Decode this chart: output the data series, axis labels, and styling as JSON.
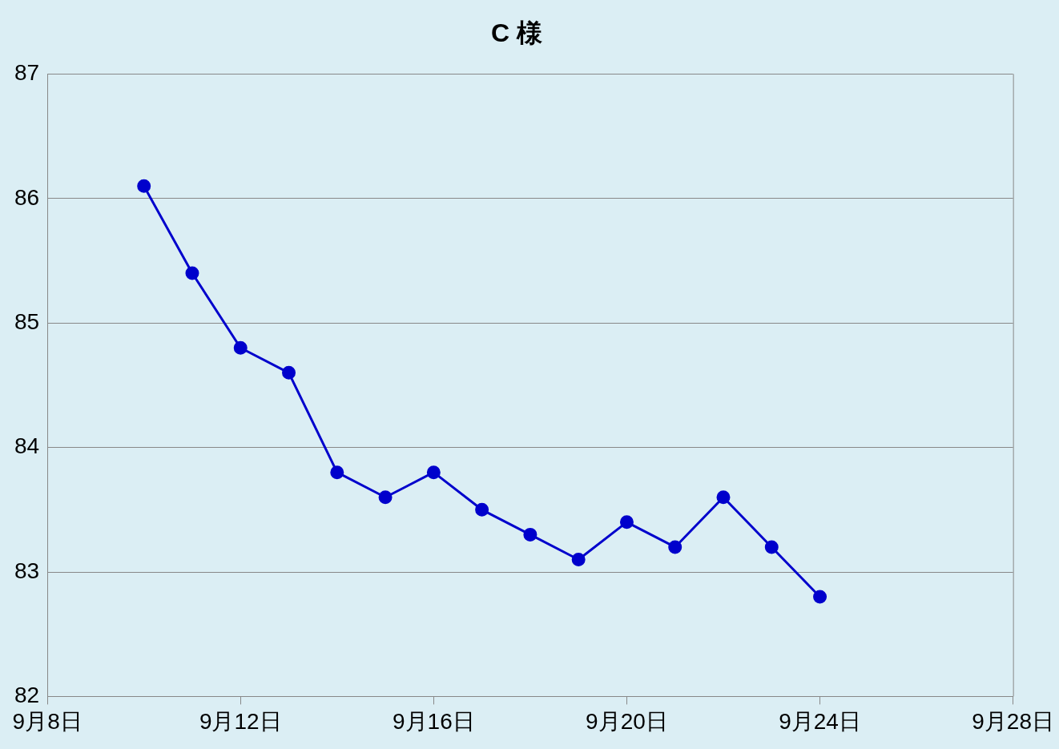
{
  "chart_data": {
    "type": "line",
    "title": "C 様",
    "x": [
      "--09-10",
      "--09-11",
      "--09-12",
      "--09-13",
      "--09-14",
      "--09-15",
      "--09-16",
      "--09-17",
      "--09-18",
      "--09-19",
      "--09-20",
      "--09-21",
      "--09-22",
      "--09-23",
      "--09-24"
    ],
    "series": [
      {
        "color": "#0000cc",
        "values": [
          86.1,
          85.4,
          84.8,
          84.6,
          83.8,
          83.6,
          83.8,
          83.5,
          83.3,
          83.1,
          83.4,
          83.2,
          83.6,
          83.2,
          82.8
        ]
      }
    ],
    "xlim": [
      "--09-08",
      "--09-28"
    ],
    "xticks": [
      {
        "value": "--09-08",
        "label": "9月8日"
      },
      {
        "value": "--09-12",
        "label": "9月12日"
      },
      {
        "value": "--09-16",
        "label": "9月16日"
      },
      {
        "value": "--09-20",
        "label": "9月20日"
      },
      {
        "value": "--09-24",
        "label": "9月24日"
      },
      {
        "value": "--09-28",
        "label": "9月28日"
      }
    ],
    "ylim": [
      82,
      87
    ],
    "yticks": [
      82,
      83,
      84,
      85,
      86,
      87
    ],
    "grid": "y",
    "legend": false,
    "marker": "circle",
    "line_style": "solid"
  }
}
